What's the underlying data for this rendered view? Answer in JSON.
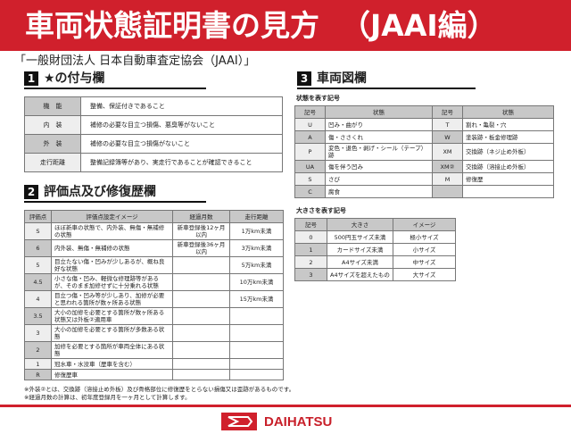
{
  "header": {
    "title": "車両状態証明書の見方",
    "subtitle": "（JAAI編）",
    "color": "#d0202c"
  },
  "organization": "「一般財団法人 日本自動車査定協会（JAAI）」",
  "section1": {
    "number": "1",
    "title": "★の付与欄",
    "rows": [
      {
        "label": "機　能",
        "text": "整備、保証付きであること"
      },
      {
        "label": "内　装",
        "text": "補修の必要な目立つ損傷、悪臭等がないこと"
      },
      {
        "label": "外　装",
        "text": "補修の必要な目立つ損傷がないこと"
      },
      {
        "label": "走行距離",
        "text": "整備記録簿等があり、実走行であることが確認できること"
      }
    ]
  },
  "section2": {
    "number": "2",
    "title": "評価点及び修復歴欄",
    "headers": [
      "評価点",
      "評価点設定イメージ",
      "経過月数",
      "走行距離"
    ],
    "rows": [
      [
        "S",
        "ほぼ新車の状態で、内外装、無傷・無補修の状態",
        "新車登録後12ヶ月以内",
        "1万km未満"
      ],
      [
        "6",
        "内外装、無傷・無補修の状態",
        "新車登録後36ヶ月以内",
        "3万km未満"
      ],
      [
        "5",
        "目立たない傷・凹みが少しあるが、概ね良好な状態",
        "",
        "5万km未満"
      ],
      [
        "4.5",
        "小さな傷・凹み、軽微な修理跡等があるが、そのまま加修せずに十分乗れる状態",
        "",
        "10万km未満"
      ],
      [
        "4",
        "目立つ傷・凹み等が少しあり、加修が必要と思われる箇所が数ヶ所ある状態",
        "",
        "15万km未満"
      ],
      [
        "3.5",
        "大小の加修を必要とする箇所が数ヶ所ある状態又は外板②適用車",
        "",
        ""
      ],
      [
        "3",
        "大小の加修を必要とする箇所が多数ある状態",
        "",
        ""
      ],
      [
        "2",
        "加修を必要とする箇所が車両全体にある状態",
        "",
        ""
      ],
      [
        "1",
        "冠水車・水没車（歴車を含む）",
        "",
        ""
      ],
      [
        "R",
        "修復歴車",
        "",
        ""
      ]
    ]
  },
  "section3": {
    "number": "3",
    "title": "車両図欄",
    "state_label": "状態を表す記号",
    "state_headers": [
      "記号",
      "状態",
      "記号",
      "状態"
    ],
    "state_rows": [
      [
        "U",
        "凹み・曲がり",
        "T",
        "割れ・亀裂・穴"
      ],
      [
        "A",
        "傷・ささくれ",
        "W",
        "塗装跡・板金修理跡"
      ],
      [
        "P",
        "変色・退色・剥げ・シール（テープ）跡",
        "XM",
        "交換跡（ネジ止め外板）"
      ],
      [
        "UA",
        "傷を伴う凹み",
        "XM②",
        "交換跡（溶接止め外板）"
      ],
      [
        "S",
        "さび",
        "M",
        "修復歴"
      ],
      [
        "C",
        "腐食",
        "",
        ""
      ]
    ],
    "size_label": "大きさを表す記号",
    "size_headers": [
      "記号",
      "大きさ",
      "イメージ"
    ],
    "size_rows": [
      [
        "0",
        "500円玉サイズ未満",
        "極小サイズ"
      ],
      [
        "1",
        "カードサイズ未満",
        "小サイズ"
      ],
      [
        "2",
        "A4サイズ未満",
        "中サイズ"
      ],
      [
        "3",
        "A4サイズを超えたもの",
        "大サイズ"
      ]
    ]
  },
  "notes": [
    "※外装②とは、交換跡（溶接止め外板）及び骨格部位に修復歴をとらない損傷又は歪跡があるものです。",
    "※経過月数の計算は、初年度登録月を一ヶ月として計算します。"
  ],
  "logo": {
    "text": "DAIHATSU"
  }
}
